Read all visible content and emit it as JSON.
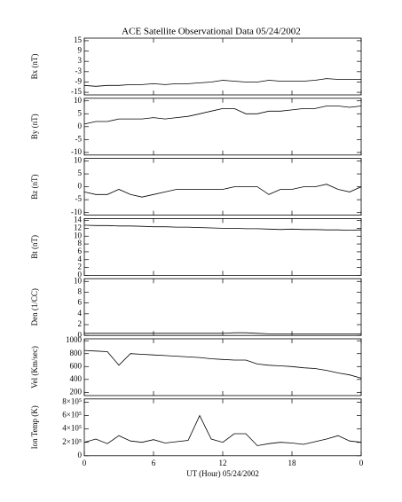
{
  "chart_data": [
    {
      "type": "line",
      "title": "ACE Satellite Observational Data   05/24/2002",
      "ylabel": "Bx (nT)",
      "color": "#000000",
      "x": [
        0,
        1,
        2,
        3,
        4,
        5,
        6,
        7,
        8,
        9,
        10,
        11,
        12,
        13,
        14,
        15,
        16,
        17,
        18,
        19,
        20,
        21,
        22,
        23,
        24
      ],
      "values": [
        -11,
        -11.5,
        -11,
        -11,
        -10.5,
        -10.5,
        -10,
        -10.5,
        -10,
        -10,
        -9.5,
        -9,
        -8,
        -8.5,
        -9,
        -9,
        -8,
        -8.5,
        -8.5,
        -8.5,
        -8,
        -7,
        -7.5,
        -7.5,
        -7.5
      ],
      "xlim": [
        0,
        24
      ],
      "xticks": [
        0,
        6,
        12,
        18,
        {
          "value": 24,
          "label": "0"
        }
      ],
      "ylim": [
        -16.5,
        16.5
      ],
      "yticks": [
        15,
        9,
        3,
        -3,
        -9,
        -15
      ]
    },
    {
      "type": "line",
      "ylabel": "By (nT)",
      "color": "#000000",
      "x": [
        0,
        1,
        2,
        3,
        4,
        5,
        6,
        7,
        8,
        9,
        10,
        11,
        12,
        13,
        14,
        15,
        16,
        17,
        18,
        19,
        20,
        21,
        22,
        23,
        24
      ],
      "values": [
        1,
        2,
        2,
        3,
        3,
        3,
        3.5,
        3,
        3.5,
        4,
        5,
        6,
        7,
        7,
        5,
        5,
        6,
        6,
        6.5,
        7,
        7,
        8,
        8,
        7.5,
        8
      ],
      "xlim": [
        0,
        24
      ],
      "xticks": [
        0,
        6,
        12,
        18,
        {
          "value": 24,
          "label": "0"
        }
      ],
      "ylim": [
        -11,
        11
      ],
      "yticks": [
        10,
        5,
        0,
        -5,
        -10
      ]
    },
    {
      "type": "line",
      "ylabel": "Bz (nT)",
      "color": "#000000",
      "x": [
        0,
        1,
        2,
        3,
        4,
        5,
        6,
        7,
        8,
        9,
        10,
        11,
        12,
        13,
        14,
        15,
        16,
        17,
        18,
        19,
        20,
        21,
        22,
        23,
        24
      ],
      "values": [
        -2,
        -3,
        -3,
        -1,
        -3,
        -4,
        -3,
        -2,
        -1,
        -1,
        -1,
        -1,
        -1,
        0,
        0,
        0,
        -3,
        -1,
        -1,
        0,
        0,
        1,
        -1,
        -2,
        0
      ],
      "xlim": [
        0,
        24
      ],
      "xticks": [
        0,
        6,
        12,
        18,
        {
          "value": 24,
          "label": "0"
        }
      ],
      "ylim": [
        -11,
        11
      ],
      "yticks": [
        10,
        5,
        0,
        -5,
        -10
      ]
    },
    {
      "type": "line",
      "ylabel": "Bt (nT)",
      "color": "#000000",
      "x": [
        0,
        1,
        2,
        3,
        4,
        5,
        6,
        7,
        8,
        9,
        10,
        11,
        12,
        13,
        14,
        15,
        16,
        17,
        18,
        19,
        20,
        21,
        22,
        23,
        24
      ],
      "values": [
        12.8,
        12.7,
        12.7,
        12.6,
        12.6,
        12.5,
        12.4,
        12.4,
        12.3,
        12.3,
        12.2,
        12.1,
        12,
        12,
        11.9,
        11.9,
        11.8,
        11.7,
        11.8,
        11.7,
        11.7,
        11.6,
        11.6,
        11.5,
        11.6
      ],
      "xlim": [
        0,
        24
      ],
      "xticks": [
        0,
        6,
        12,
        18,
        {
          "value": 24,
          "label": "0"
        }
      ],
      "ylim": [
        0,
        14.5
      ],
      "yticks": [
        0,
        2,
        4,
        6,
        8,
        10,
        12,
        14
      ]
    },
    {
      "type": "line",
      "ylabel": "Den (1/CC)",
      "color": "#000000",
      "x": [
        0,
        1,
        2,
        3,
        4,
        5,
        6,
        7,
        8,
        9,
        10,
        11,
        12,
        13,
        14,
        15,
        16,
        17,
        18,
        19,
        20,
        21,
        22,
        23,
        24
      ],
      "values": [
        0.4,
        0.4,
        0.4,
        0.4,
        0.4,
        0.4,
        0.4,
        0.4,
        0.4,
        0.4,
        0.4,
        0.4,
        0.4,
        0.5,
        0.5,
        0.4,
        0.3,
        0.3,
        0.3,
        0.3,
        0.3,
        0.3,
        0.3,
        0.3,
        0.3
      ],
      "xlim": [
        0,
        24
      ],
      "xticks": [
        0,
        6,
        12,
        18,
        {
          "value": 24,
          "label": "0"
        }
      ],
      "ylim": [
        0,
        10.5
      ],
      "yticks": [
        0,
        2,
        4,
        6,
        8,
        10
      ]
    },
    {
      "type": "line",
      "ylabel": "Vel (Km/sec)",
      "color": "#000000",
      "x": [
        0,
        1,
        2,
        3,
        4,
        5,
        6,
        7,
        8,
        9,
        10,
        11,
        12,
        13,
        14,
        15,
        16,
        17,
        18,
        19,
        20,
        21,
        22,
        23,
        24
      ],
      "values": [
        850,
        840,
        830,
        620,
        800,
        790,
        780,
        770,
        760,
        750,
        740,
        720,
        710,
        700,
        700,
        640,
        620,
        610,
        600,
        580,
        570,
        540,
        500,
        470,
        420
      ],
      "xlim": [
        0,
        24
      ],
      "xticks": [
        0,
        6,
        12,
        18,
        {
          "value": 24,
          "label": "0"
        }
      ],
      "ylim": [
        150,
        1030
      ],
      "yticks": [
        200,
        400,
        600,
        800,
        1000
      ]
    },
    {
      "type": "line",
      "ylabel": "Ion Temp (K)",
      "xlabel": "UT (Hour)   05/24/2002",
      "color": "#000000",
      "x": [
        0,
        1,
        2,
        3,
        4,
        5,
        6,
        7,
        8,
        9,
        10,
        11,
        12,
        13,
        14,
        15,
        16,
        17,
        18,
        19,
        20,
        21,
        22,
        23,
        24
      ],
      "values": [
        200000,
        250000,
        180000,
        300000,
        220000,
        200000,
        240000,
        190000,
        210000,
        230000,
        600000,
        250000,
        200000,
        330000,
        330000,
        150000,
        180000,
        200000,
        190000,
        170000,
        210000,
        250000,
        300000,
        220000,
        200000
      ],
      "xlim": [
        0,
        24
      ],
      "xticks": [
        0,
        6,
        12,
        18,
        {
          "value": 24,
          "label": "0"
        }
      ],
      "ylim": [
        0,
        850000
      ],
      "yticks": [
        0,
        {
          "value": 200000,
          "label": "2×10⁵"
        },
        {
          "value": 400000,
          "label": "4×10⁵"
        },
        {
          "value": 600000,
          "label": "6×10⁵"
        },
        {
          "value": 800000,
          "label": "8×10⁵"
        }
      ]
    }
  ]
}
